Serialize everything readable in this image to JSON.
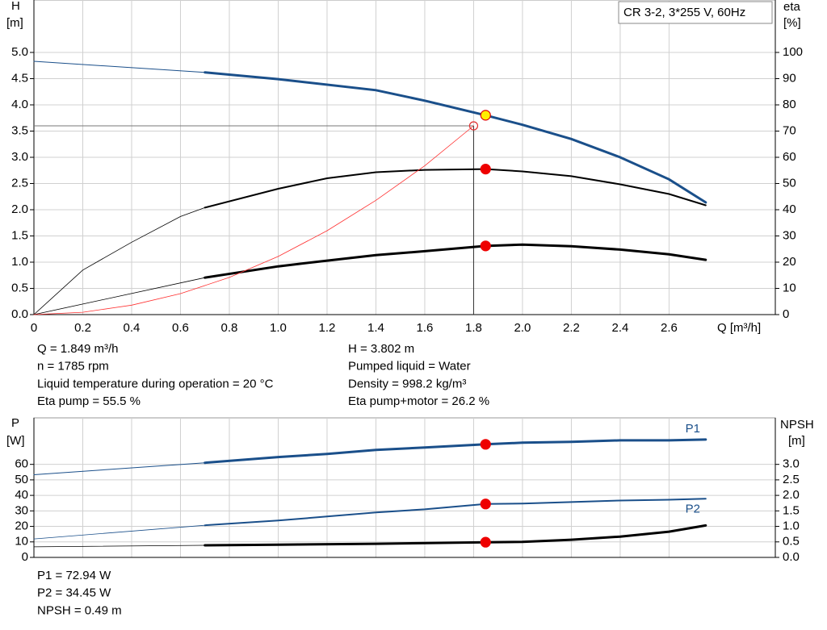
{
  "chart_data": [
    {
      "type": "line",
      "title": "CR 3-2, 3*255 V, 60Hz",
      "y_label": "H",
      "y_unit": "[m]",
      "y2_label": "eta",
      "y2_unit": "[%]",
      "x_label": "Q [m³/h]",
      "xlim": [
        0,
        3.035
      ],
      "ylim": [
        0,
        6
      ],
      "y2lim": [
        0,
        120
      ],
      "grid": true,
      "xtick_labels": true,
      "xticks": [
        0,
        0.2,
        0.4,
        0.6,
        0.8,
        {
          "value": 1,
          "label": "1.0"
        },
        1.2,
        1.4,
        1.6,
        1.8,
        {
          "value": 2,
          "label": "2.0"
        },
        2.2,
        2.4,
        2.6
      ],
      "yticks": [
        {
          "value": 0,
          "label": "0.0"
        },
        0.5,
        {
          "value": 1,
          "label": "1.0"
        },
        1.5,
        {
          "value": 2,
          "label": "2.0"
        },
        2.5,
        {
          "value": 3,
          "label": "3.0"
        },
        3.5,
        {
          "value": 4,
          "label": "4.0"
        },
        4.5,
        {
          "value": 5,
          "label": "5.0"
        }
      ],
      "y2ticks": [
        0,
        10,
        20,
        30,
        40,
        50,
        60,
        70,
        80,
        90,
        100
      ],
      "series": [
        {
          "color": "#1a4f8a",
          "width": 1,
          "x": [
            0,
            0.7
          ],
          "values": [
            4.83,
            4.62
          ]
        },
        {
          "color": "#1a4f8a",
          "width": 3,
          "x": [
            0.7,
            1.0,
            1.4,
            1.6,
            1.849,
            2.0,
            2.2,
            2.4,
            2.6,
            2.75
          ],
          "values": [
            4.62,
            4.49,
            4.28,
            4.08,
            3.802,
            3.62,
            3.35,
            3.0,
            2.58,
            2.14
          ]
        },
        {
          "color": "#000000",
          "width": 0.8,
          "axis": "y2",
          "x": [
            0,
            0.2,
            0.4,
            0.6,
            0.7
          ],
          "values": [
            0,
            17,
            27.6,
            37.4,
            40.8
          ]
        },
        {
          "color": "#000000",
          "width": 2,
          "axis": "y2",
          "x": [
            0.7,
            1.0,
            1.2,
            1.4,
            1.6,
            1.849,
            2.0,
            2.2,
            2.4,
            2.6,
            2.75
          ],
          "values": [
            40.8,
            48,
            52,
            54.3,
            55.2,
            55.5,
            54.6,
            52.8,
            49.7,
            46,
            41.7
          ]
        },
        {
          "color": "#000000",
          "width": 0.8,
          "axis": "y2",
          "x": [
            0,
            0.7
          ],
          "values": [
            0,
            14.1
          ]
        },
        {
          "color": "#000000",
          "width": 3,
          "axis": "y2",
          "x": [
            0.7,
            1.0,
            1.2,
            1.4,
            1.6,
            1.849,
            2.0,
            2.2,
            2.4,
            2.6,
            2.75
          ],
          "values": [
            14.1,
            18.4,
            20.6,
            22.7,
            24.2,
            26.2,
            26.7,
            26.1,
            24.8,
            23,
            20.9
          ]
        },
        {
          "color": "#ff3030",
          "width": 0.8,
          "x": [
            0,
            0.2,
            0.4,
            0.6,
            0.8,
            1.0,
            1.2,
            1.4,
            1.6,
            1.8
          ],
          "values": [
            0,
            0.044,
            0.18,
            0.4,
            0.71,
            1.11,
            1.6,
            2.18,
            2.84,
            3.6
          ]
        }
      ],
      "guides": [
        {
          "x": 1.8,
          "y": 3.6
        }
      ],
      "markers": [
        {
          "x": 1.8,
          "y": 3.6,
          "color": "none",
          "edge": "#e03030"
        },
        {
          "x": 1.849,
          "y": 3.802,
          "color": "#ffee00",
          "edge": "#e00000"
        },
        {
          "x": 1.849,
          "y": 55.5,
          "axis": "y2",
          "color": "#ee0000",
          "edge": "#ee0000"
        },
        {
          "x": 1.849,
          "y": 26.2,
          "axis": "y2",
          "color": "#ee0000",
          "edge": "#ee0000"
        }
      ],
      "info_left": [
        "Q = 1.849 m³/h",
        "n = 1785 rpm",
        "Liquid temperature during operation = 20 °C",
        "Eta pump = 55.5 %"
      ],
      "info_right": [
        "H = 3.802 m",
        "Pumped liquid = Water",
        "Density = 998.2 kg/m³",
        "Eta pump+motor = 26.2 %"
      ]
    },
    {
      "type": "line",
      "y_label": "P",
      "y_unit": "[W]",
      "y2_label": "NPSH",
      "y2_unit": "[m]",
      "xlim": [
        0,
        3.035
      ],
      "ylim": [
        0,
        90
      ],
      "y2lim": [
        0,
        4.5
      ],
      "grid": true,
      "xtick_labels": false,
      "xticks": [
        0,
        0.2,
        0.4,
        0.6,
        0.8,
        1,
        1.2,
        1.4,
        1.6,
        1.8,
        2,
        2.2,
        2.4,
        2.6
      ],
      "yticks": [
        0,
        10,
        20,
        30,
        40,
        50,
        60
      ],
      "y2ticks": [
        {
          "value": 0,
          "label": "0.0"
        },
        0.5,
        {
          "value": 1,
          "label": "1.0"
        },
        1.5,
        {
          "value": 2,
          "label": "2.0"
        },
        2.5,
        {
          "value": 3,
          "label": "3.0"
        }
      ],
      "series": [
        {
          "color": "#1a4f8a",
          "width": 1,
          "x": [
            0,
            0.7
          ],
          "values": [
            53.3,
            61
          ]
        },
        {
          "name": "P1",
          "label_pos": "above",
          "color": "#1a4f8a",
          "width": 3,
          "x": [
            0.7,
            1.0,
            1.2,
            1.4,
            1.6,
            1.849,
            2.0,
            2.2,
            2.4,
            2.6,
            2.75
          ],
          "values": [
            61,
            64.7,
            66.7,
            69.3,
            70.9,
            72.94,
            74,
            74.5,
            75.5,
            75.5,
            76
          ]
        },
        {
          "color": "#1a4f8a",
          "width": 0.8,
          "x": [
            0,
            0.7
          ],
          "values": [
            11.9,
            20.7
          ]
        },
        {
          "name": "P2",
          "label_pos": "below",
          "color": "#1a4f8a",
          "width": 2,
          "x": [
            0.7,
            1.0,
            1.2,
            1.4,
            1.6,
            1.849,
            2.0,
            2.2,
            2.4,
            2.6,
            2.75
          ],
          "values": [
            20.7,
            23.8,
            26.4,
            29,
            31,
            34.45,
            34.7,
            35.7,
            36.7,
            37.2,
            37.8
          ]
        },
        {
          "color": "#000000",
          "width": 0.8,
          "axis": "y2",
          "x": [
            0,
            0.7
          ],
          "values": [
            0.34,
            0.39
          ]
        },
        {
          "color": "#000000",
          "width": 3,
          "axis": "y2",
          "x": [
            0.7,
            1.0,
            1.4,
            1.849,
            2.0,
            2.2,
            2.4,
            2.6,
            2.75
          ],
          "values": [
            0.39,
            0.41,
            0.44,
            0.49,
            0.5,
            0.57,
            0.67,
            0.83,
            1.03
          ]
        }
      ],
      "guides": [],
      "markers": [
        {
          "x": 1.849,
          "y": 72.94,
          "color": "#ee0000",
          "edge": "#ee0000"
        },
        {
          "x": 1.849,
          "y": 34.45,
          "color": "#ee0000",
          "edge": "#ee0000"
        },
        {
          "x": 1.849,
          "y": 0.49,
          "axis": "y2",
          "color": "#ee0000",
          "edge": "#ee0000"
        }
      ],
      "info_left": [
        "P1 = 72.94 W",
        "P2 = 34.45 W",
        "NPSH = 0.49 m"
      ],
      "info_right": []
    }
  ]
}
